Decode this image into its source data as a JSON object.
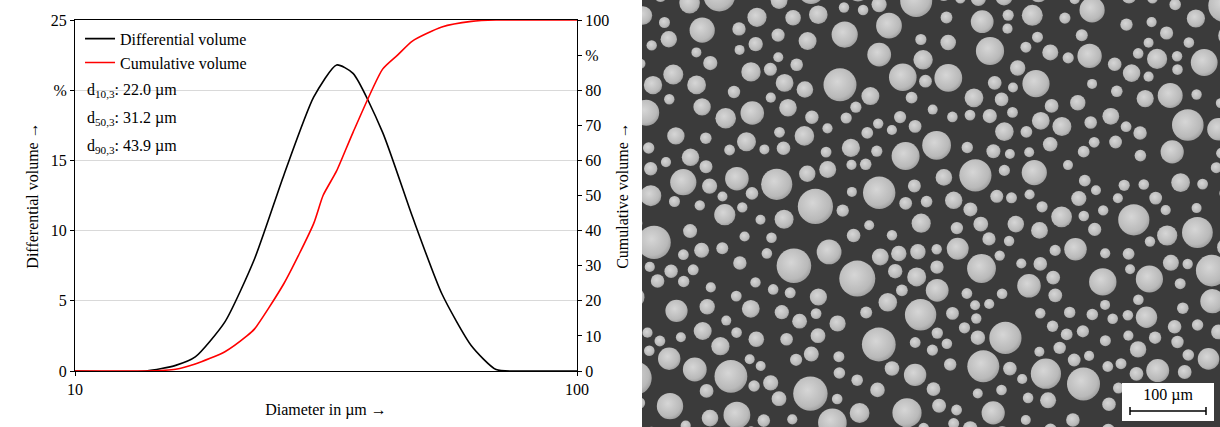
{
  "chart_data": {
    "type": "line",
    "log": "x",
    "grid": true,
    "legend": "top left",
    "xlabel": "Diameter in µm →",
    "ylabel": "Differential volume →",
    "y2label": "Cumulative volume →",
    "xlim": [
      10,
      100
    ],
    "xticks": [
      10,
      100
    ],
    "ylim": [
      0,
      25
    ],
    "yticks": [
      0,
      5,
      10,
      15,
      {
        "value": 20,
        "label": "%"
      },
      25
    ],
    "y2lim": [
      0,
      100
    ],
    "y2ticks": [
      0,
      10,
      20,
      30,
      40,
      50,
      60,
      70,
      80,
      {
        "value": 90,
        "label": "%"
      },
      100
    ],
    "series": [
      {
        "name": "Differential volume",
        "color": "#000000",
        "line_style": "solid",
        "x": [
          10,
          13.85,
          15.87,
          17.36,
          19.89,
          22.79,
          26.09,
          29.88,
          33.2,
          35.8,
          41.0,
          47.0,
          53.8,
          61.6,
          69.0,
          77.3,
          100
        ],
        "values": [
          0,
          0,
          0.4,
          1.0,
          3.5,
          8.0,
          14.0,
          19.5,
          21.8,
          21.2,
          17.0,
          11.0,
          5.5,
          1.8,
          0.1,
          0,
          0
        ]
      },
      {
        "name": "Cumulative volume",
        "color": "#ff0000",
        "line_style": "solid",
        "axis": "y2",
        "x": [
          10,
          13.85,
          15.87,
          17.36,
          19.89,
          22.0,
          22.79,
          26.09,
          29.88,
          31.2,
          33.2,
          35.8,
          41.0,
          43.9,
          47.0,
          53.8,
          61.6,
          69.0,
          77.3,
          100
        ],
        "values": [
          0,
          0,
          0.5,
          2,
          5.5,
          10,
          12,
          25,
          42,
          50,
          57,
          68,
          86,
          90,
          94,
          98,
          99.6,
          100,
          100,
          100
        ]
      }
    ],
    "annotations": [
      {
        "main": "d",
        "sub": "10,3",
        "text": ": 22.0 µm"
      },
      {
        "main": "d",
        "sub": "50,3",
        "text": ": 31.2 µm"
      },
      {
        "main": "d",
        "sub": "90,3",
        "text": ": 43.9 µm"
      }
    ]
  },
  "image": {
    "scale_bar": "100 µm"
  }
}
